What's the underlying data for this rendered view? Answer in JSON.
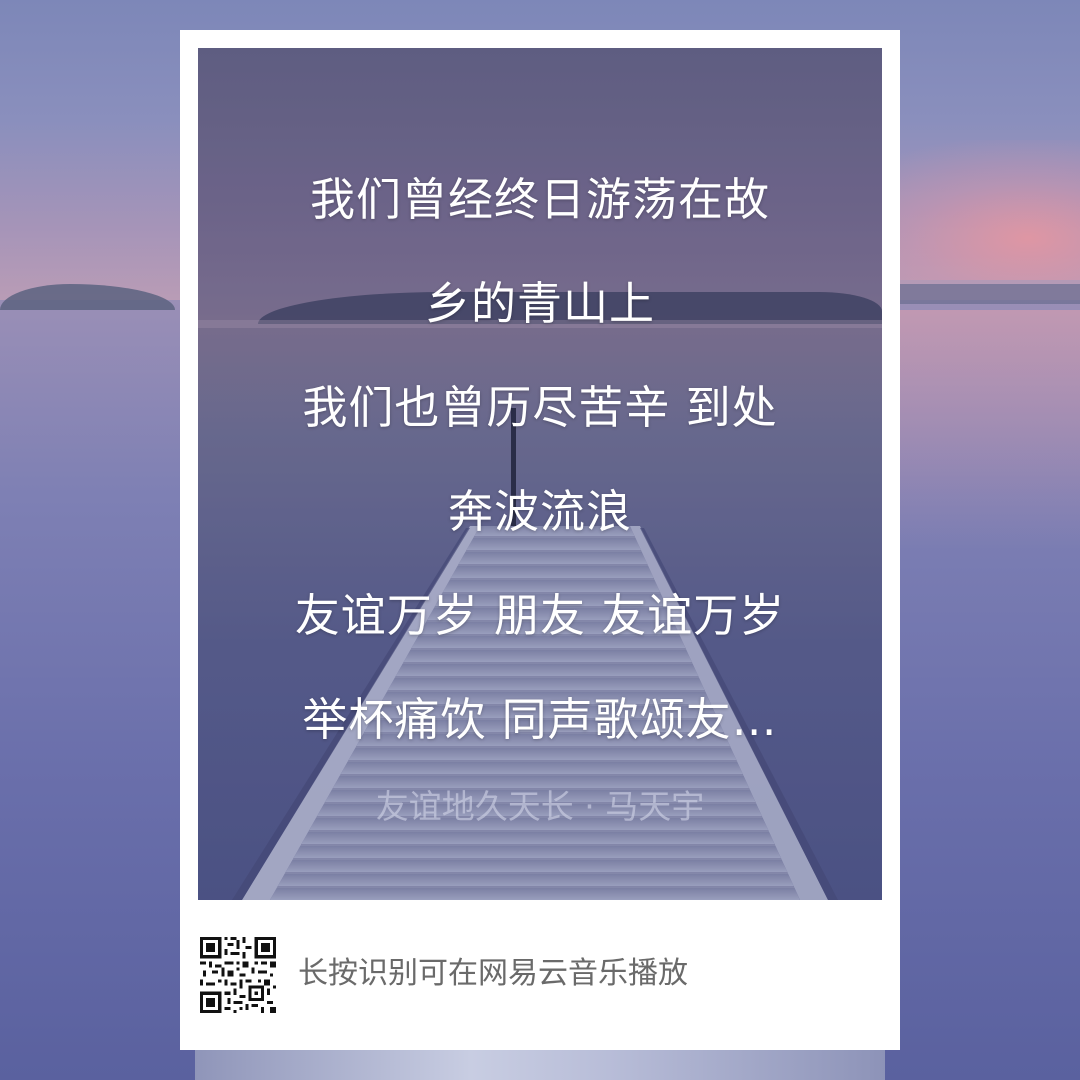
{
  "poster": {
    "lyrics": [
      "我们曾经终日游荡在故",
      "乡的青山上",
      "我们也曾历尽苦辛 到处",
      "奔波流浪",
      "友谊万岁 朋友 友谊万岁",
      "举杯痛饮 同声歌颂友…"
    ],
    "song_credit": "友谊地久天长 · 马天宇"
  },
  "footer": {
    "hint": "长按识别可在网易云音乐播放",
    "qr_icon": "qr-code-icon"
  },
  "colors": {
    "card": "#ffffff",
    "lyric_text": "#ffffff",
    "hint_text": "#6a6a6a",
    "background_tint": "#6f77a8"
  }
}
